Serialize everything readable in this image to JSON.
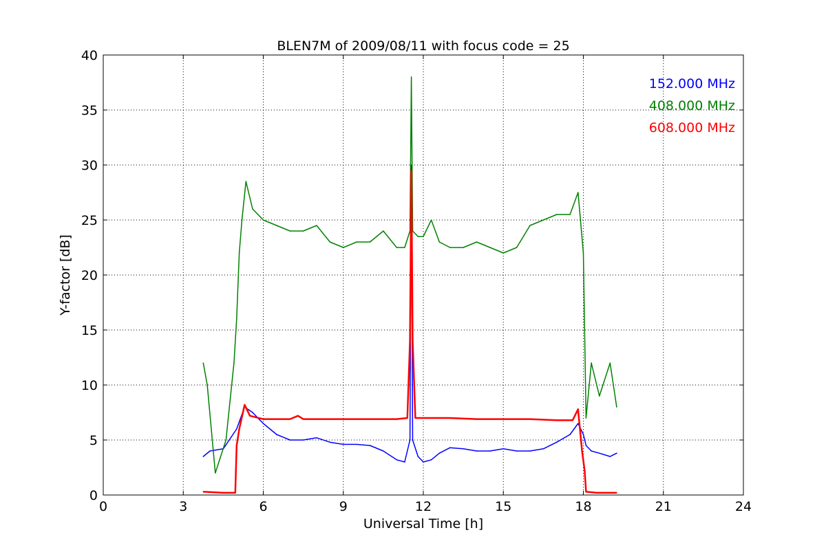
{
  "chart_data": {
    "type": "line",
    "title": "BLEN7M of 2009/08/11 with focus code = 25",
    "xlabel": "Universal Time [h]",
    "ylabel": "Y-factor [dB]",
    "xlim": [
      0,
      24
    ],
    "ylim": [
      0,
      40
    ],
    "xticks": [
      0,
      3,
      6,
      9,
      12,
      15,
      18,
      21,
      24
    ],
    "yticks": [
      0,
      5,
      10,
      15,
      20,
      25,
      30,
      35,
      40
    ],
    "grid": true,
    "legend_position": "top-right",
    "series": [
      {
        "name": "152.000 MHz",
        "color": "#0000ff",
        "x": [
          3.75,
          4.0,
          4.5,
          5.0,
          5.3,
          5.6,
          6.0,
          6.5,
          7.0,
          7.5,
          8.0,
          8.5,
          9.0,
          9.5,
          10.0,
          10.5,
          11.0,
          11.3,
          11.5,
          11.55,
          11.6,
          11.8,
          12.0,
          12.3,
          12.6,
          13.0,
          13.5,
          14.0,
          14.5,
          15.0,
          15.5,
          16.0,
          16.5,
          17.0,
          17.5,
          17.8,
          18.0,
          18.1,
          18.3,
          18.6,
          19.0,
          19.25
        ],
        "values": [
          3.5,
          4.0,
          4.2,
          6.0,
          8.0,
          7.5,
          6.5,
          5.5,
          5.0,
          5.0,
          5.2,
          4.8,
          4.6,
          4.6,
          4.5,
          4.0,
          3.2,
          3.0,
          5.0,
          30.0,
          5.0,
          3.5,
          3.0,
          3.2,
          3.8,
          4.3,
          4.2,
          4.0,
          4.0,
          4.2,
          4.0,
          4.0,
          4.2,
          4.8,
          5.5,
          6.5,
          5.5,
          4.5,
          4.0,
          3.8,
          3.5,
          3.8
        ]
      },
      {
        "name": "408.000 MHz",
        "color": "#008000",
        "x": [
          3.75,
          3.9,
          4.2,
          4.6,
          4.9,
          5.0,
          5.1,
          5.2,
          5.35,
          5.6,
          6.0,
          6.5,
          7.0,
          7.5,
          8.0,
          8.5,
          9.0,
          9.5,
          10.0,
          10.5,
          11.0,
          11.3,
          11.5,
          11.55,
          11.6,
          11.8,
          12.0,
          12.3,
          12.6,
          13.0,
          13.5,
          14.0,
          14.5,
          15.0,
          15.5,
          16.0,
          16.5,
          17.0,
          17.5,
          17.8,
          18.0,
          18.1,
          18.3,
          18.6,
          19.0,
          19.25
        ],
        "values": [
          12.0,
          10.0,
          2.0,
          5.0,
          12.0,
          16.0,
          22.0,
          25.0,
          28.5,
          26.0,
          25.0,
          24.5,
          24.0,
          24.0,
          24.5,
          23.0,
          22.5,
          23.0,
          23.0,
          24.0,
          22.5,
          22.5,
          24.0,
          38.0,
          24.0,
          23.5,
          23.5,
          25.0,
          23.0,
          22.5,
          22.5,
          23.0,
          22.5,
          22.0,
          22.5,
          24.5,
          25.0,
          25.5,
          25.5,
          27.5,
          22.0,
          7.0,
          12.0,
          9.0,
          12.0,
          8.0
        ]
      },
      {
        "name": "608.000 MHz",
        "color": "#ff0000",
        "x": [
          3.75,
          4.5,
          4.95,
          5.0,
          5.1,
          5.3,
          5.5,
          6.0,
          7.0,
          7.3,
          7.5,
          8.0,
          9.0,
          10.0,
          11.0,
          11.4,
          11.5,
          11.55,
          11.6,
          11.7,
          12.0,
          13.0,
          14.0,
          14.5,
          15.0,
          16.0,
          17.0,
          17.6,
          17.8,
          17.95,
          18.05,
          18.1,
          18.5,
          19.0,
          19.25
        ],
        "values": [
          0.3,
          0.2,
          0.2,
          4.5,
          6.0,
          8.2,
          7.2,
          6.9,
          6.9,
          7.2,
          6.9,
          6.9,
          6.9,
          6.9,
          6.9,
          7.0,
          14.0,
          29.5,
          14.0,
          7.0,
          7.0,
          7.0,
          6.9,
          6.9,
          6.9,
          6.9,
          6.8,
          6.8,
          7.8,
          4.0,
          2.2,
          0.3,
          0.2,
          0.2,
          0.2
        ]
      }
    ]
  }
}
